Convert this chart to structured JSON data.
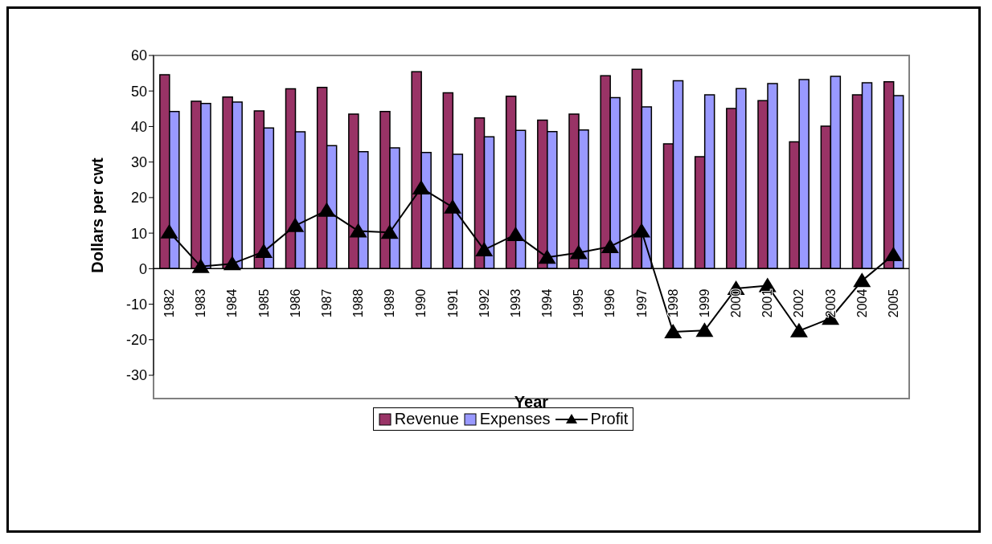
{
  "chart_data": {
    "type": "bar",
    "xlabel": "Year",
    "ylabel": "Dollars per cwt",
    "categories": [
      "1982",
      "1983",
      "1984",
      "1985",
      "1986",
      "1987",
      "1988",
      "1989",
      "1990",
      "1991",
      "1992",
      "1993",
      "1994",
      "1995",
      "1996",
      "1997",
      "1998",
      "1999",
      "2000",
      "2001",
      "2002",
      "2003",
      "2004",
      "2005"
    ],
    "series": [
      {
        "name": "Revenue",
        "color": "#993366",
        "values": [
          54.6,
          47.1,
          48.3,
          44.4,
          50.6,
          51.0,
          43.5,
          44.2,
          55.4,
          49.5,
          42.4,
          48.5,
          41.8,
          43.5,
          54.3,
          56.1,
          35.1,
          31.5,
          45.1,
          47.3,
          35.7,
          40.1,
          48.9,
          52.6
        ]
      },
      {
        "name": "Expenses",
        "color": "#9999ff",
        "values": [
          44.2,
          46.5,
          46.9,
          39.6,
          38.5,
          34.6,
          32.9,
          34.0,
          32.7,
          32.2,
          37.1,
          38.9,
          38.6,
          39.0,
          48.1,
          45.5,
          52.9,
          48.9,
          50.7,
          52.1,
          53.2,
          54.1,
          52.3,
          48.7
        ]
      },
      {
        "name": "Profit",
        "type": "line",
        "color": "#000000",
        "marker": "triangle",
        "values": [
          10.3,
          0.6,
          1.4,
          4.8,
          12.1,
          16.4,
          10.6,
          10.2,
          22.7,
          17.3,
          5.3,
          9.6,
          3.2,
          4.5,
          6.2,
          10.6,
          -17.8,
          -17.4,
          -5.6,
          -4.8,
          -17.5,
          -14.0,
          -3.4,
          3.9
        ]
      }
    ],
    "ylim": [
      -30,
      60
    ],
    "yticks": [
      -30,
      -20,
      -10,
      0,
      10,
      20,
      30,
      40,
      50,
      60
    ],
    "grid": false,
    "legend": "bottom"
  }
}
